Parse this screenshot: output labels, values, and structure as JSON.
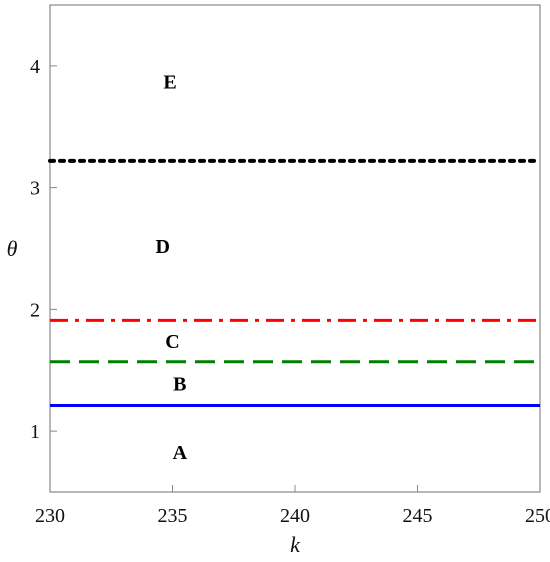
{
  "chart_data": {
    "type": "line",
    "title": "",
    "xlabel": "k",
    "ylabel": "θ",
    "xlim": [
      230,
      250
    ],
    "ylim": [
      0.5,
      4.5
    ],
    "xticks": [
      230,
      235,
      240,
      245,
      250
    ],
    "yticks": [
      1,
      2,
      3,
      4
    ],
    "grid": false,
    "series": [
      {
        "x": [
          230,
          250
        ],
        "values": [
          1.21,
          1.21
        ],
        "color": "#0000ff",
        "style": "solid"
      },
      {
        "x": [
          230,
          250
        ],
        "values": [
          1.57,
          1.57
        ],
        "color": "#008000",
        "style": "dashed"
      },
      {
        "x": [
          230,
          250
        ],
        "values": [
          1.91,
          1.91
        ],
        "color": "#ff0000",
        "style": "dashdot"
      },
      {
        "x": [
          230,
          250
        ],
        "values": [
          3.22,
          3.22
        ],
        "color": "#000000",
        "style": "dotted"
      }
    ],
    "annotations": [
      {
        "text": "A",
        "x": 235.3,
        "y": 0.83
      },
      {
        "text": "B",
        "x": 235.3,
        "y": 1.39
      },
      {
        "text": "C",
        "x": 235.0,
        "y": 1.74
      },
      {
        "text": "D",
        "x": 234.6,
        "y": 2.52
      },
      {
        "text": "E",
        "x": 234.9,
        "y": 3.87
      }
    ]
  }
}
